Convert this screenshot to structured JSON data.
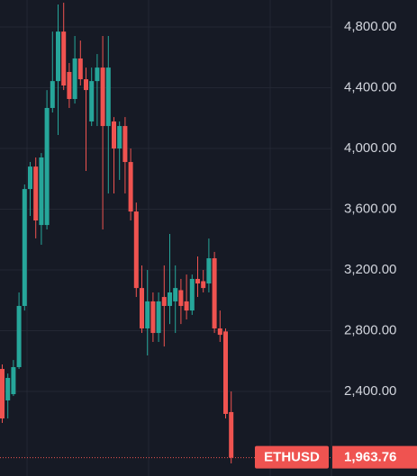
{
  "chart_data": {
    "type": "candlestick",
    "symbol": "ETHUSD",
    "up_color": "#26a69a",
    "down_color": "#ef5350",
    "grid": true,
    "ylim": [
      1843,
      4978
    ],
    "yticks": [
      {
        "value": 2400,
        "label": "2,400.00"
      },
      {
        "value": 2800,
        "label": "2,800.00"
      },
      {
        "value": 3200,
        "label": "3,200.00"
      },
      {
        "value": 3600,
        "label": "3,600.00"
      },
      {
        "value": 4000,
        "label": "4,000.00"
      },
      {
        "value": 4400,
        "label": "4,400.00"
      },
      {
        "value": 4800,
        "label": "4,800.00"
      }
    ],
    "last_price": {
      "value": 1963.76,
      "label": "1,963.76"
    },
    "open": [
      2548,
      2341,
      2382,
      2560,
      2963,
      3733,
      3881,
      3496,
      3496,
      4267,
      4444,
      4770,
      4504,
      4326,
      4593,
      4456,
      4178,
      4444,
      4533,
      4148,
      4178,
      4000,
      4148,
      3911,
      3585,
      3081,
      2815,
      2993,
      2785,
      3022,
      2963,
      2993,
      3067,
      2993,
      2933,
      3141,
      3126,
      3111,
      3277,
      2815,
      2795,
      2264
    ],
    "high": [
      2578,
      2518,
      2607,
      3052,
      3763,
      3911,
      3941,
      3970,
      4385,
      4770,
      4948,
      4960,
      4563,
      4741,
      4711,
      4533,
      4533,
      4622,
      4741,
      4741,
      4207,
      4178,
      4207,
      4000,
      3644,
      3230,
      3200,
      3052,
      3052,
      3230,
      3437,
      3230,
      3141,
      3170,
      3170,
      3289,
      3200,
      3407,
      3319,
      2933,
      2815,
      2400
    ],
    "low": [
      2193,
      2222,
      2370,
      2548,
      2933,
      3556,
      3408,
      3366,
      3467,
      4237,
      4089,
      4385,
      4267,
      4296,
      4415,
      3852,
      4148,
      4148,
      3467,
      3704,
      3704,
      3793,
      3704,
      3526,
      3022,
      2785,
      2637,
      2726,
      2726,
      2696,
      2844,
      2785,
      2844,
      2874,
      2904,
      3022,
      3052,
      3052,
      2785,
      2726,
      2222,
      1926
    ],
    "close": [
      2222,
      2489,
      2560,
      2963,
      3733,
      3881,
      3526,
      3941,
      4267,
      4444,
      4770,
      4415,
      4326,
      4593,
      4456,
      4385,
      4444,
      4533,
      4148,
      4533,
      4000,
      4148,
      3911,
      3585,
      3081,
      2815,
      2993,
      2785,
      2993,
      2963,
      3052,
      3081,
      2963,
      2933,
      3141,
      3111,
      3081,
      3277,
      2815,
      2773,
      2252,
      1963.76
    ]
  }
}
